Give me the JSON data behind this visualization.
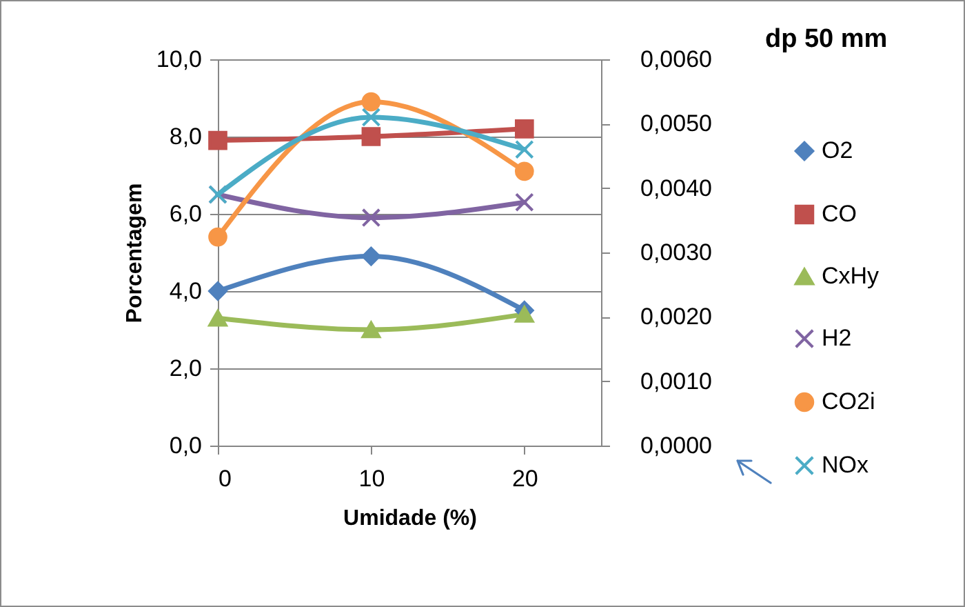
{
  "chart_data": {
    "type": "line",
    "title": "dp 50 mm",
    "xlabel": "Umidade (%)",
    "ylabel": "Porcentagem",
    "x": [
      0,
      10,
      20
    ],
    "xlim": [
      0,
      25
    ],
    "xticks": [
      0,
      10,
      20
    ],
    "ylim": [
      0,
      10
    ],
    "yticks": [
      {
        "value": 0,
        "label": "0,0"
      },
      {
        "value": 2,
        "label": "2,0"
      },
      {
        "value": 4,
        "label": "4,0"
      },
      {
        "value": 6,
        "label": "6,0"
      },
      {
        "value": 8,
        "label": "8,0"
      },
      {
        "value": 10,
        "label": "10,0"
      }
    ],
    "y2lim": [
      0,
      0.006
    ],
    "y2ticks": [
      {
        "value": 0,
        "label": "0,0000"
      },
      {
        "value": 0.001,
        "label": "0,0010"
      },
      {
        "value": 0.002,
        "label": "0,0020"
      },
      {
        "value": 0.003,
        "label": "0,0030"
      },
      {
        "value": 0.004,
        "label": "0,0040"
      },
      {
        "value": 0.005,
        "label": "0,0050"
      },
      {
        "value": 0.006,
        "label": "0,0060"
      }
    ],
    "grid": "y",
    "legend": "right",
    "series": [
      {
        "name": "O2",
        "color": "#4f81bd",
        "marker": "diamond",
        "values": [
          4.0,
          4.9,
          3.5
        ]
      },
      {
        "name": "CO",
        "color": "#c0504d",
        "marker": "square",
        "values": [
          7.9,
          8.0,
          8.2
        ]
      },
      {
        "name": "CxHy",
        "color": "#9bbb59",
        "marker": "triangle",
        "values": [
          3.3,
          3.0,
          3.4
        ]
      },
      {
        "name": "H2",
        "color": "#8064a2",
        "marker": "cross",
        "values": [
          6.5,
          5.9,
          6.3
        ]
      },
      {
        "name": "CO2i",
        "color": "#f79646",
        "marker": "circle",
        "values": [
          5.4,
          8.9,
          7.1
        ]
      },
      {
        "name": "NOx",
        "color": "#4bacc6",
        "marker": "cross",
        "axis": "y2",
        "values": [
          0.0039,
          0.0051,
          0.0046
        ]
      }
    ]
  }
}
